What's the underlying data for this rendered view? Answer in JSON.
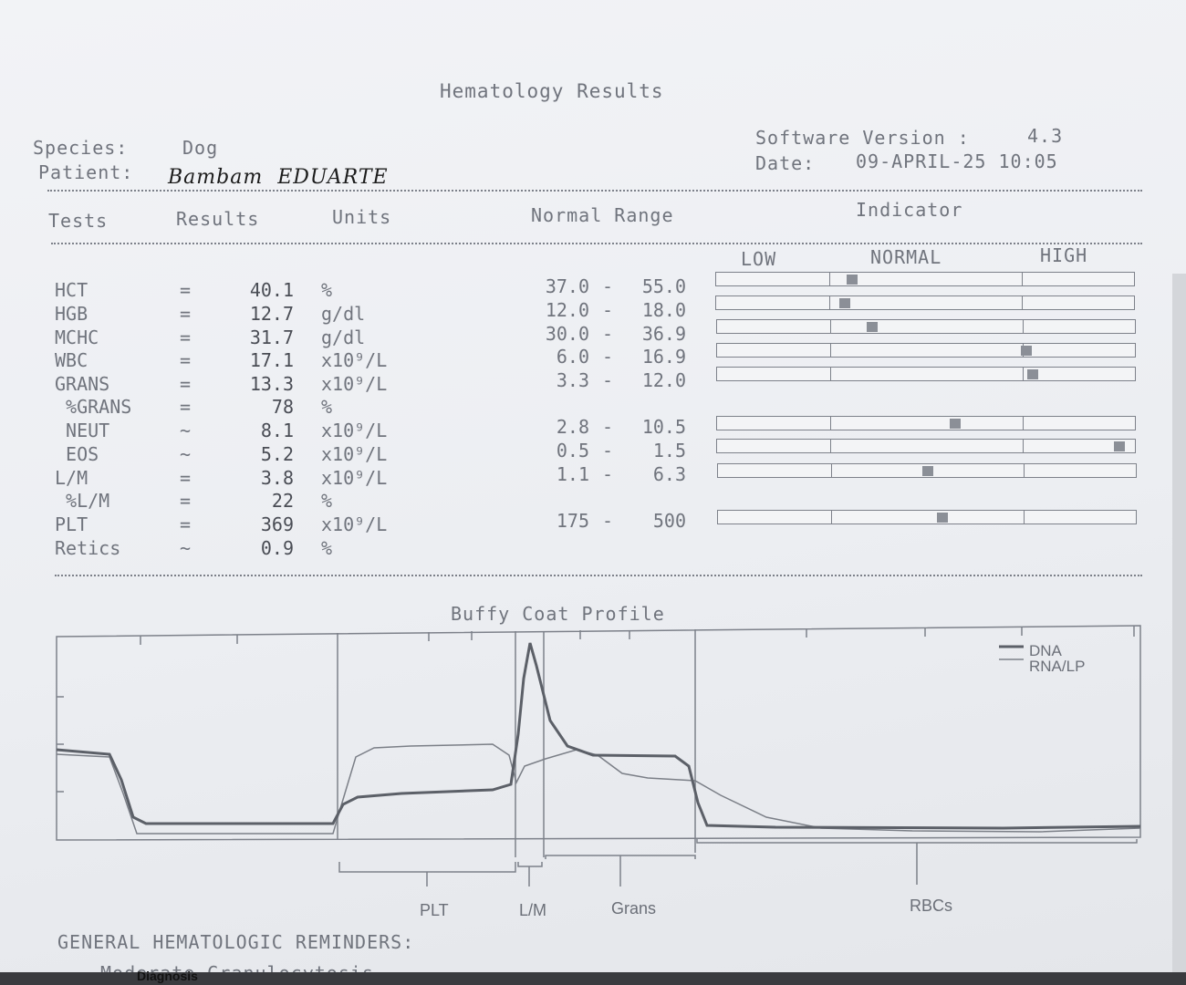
{
  "report": {
    "title": "Hematology Results",
    "species_label": "Species:",
    "species_value": "Dog",
    "patient_label": "Patient:",
    "patient_value": "Bambam  EDUARTE",
    "software_label": "Software Version :",
    "software_value": "4.3",
    "date_label": "Date:",
    "date_value": "09-APRIL-25 10:05"
  },
  "table": {
    "headers": {
      "tests": "Tests",
      "results": "Results",
      "units": "Units",
      "range": "Normal Range",
      "indicator": "Indicator"
    },
    "indicator_labels": {
      "low": "LOW",
      "normal": "NORMAL",
      "high": "HIGH"
    },
    "rows": [
      {
        "test": "HCT",
        "op": "=",
        "result": "40.1",
        "unit": "%",
        "low": "37.0",
        "high": "55.0",
        "indicator": 0.12
      },
      {
        "test": "HGB",
        "op": "=",
        "result": "12.7",
        "unit": "g/dl",
        "low": "12.0",
        "high": "18.0",
        "indicator": 0.08
      },
      {
        "test": "MCHC",
        "op": "=",
        "result": "31.7",
        "unit": "g/dl",
        "low": "30.0",
        "high": "36.9",
        "indicator": 0.22
      },
      {
        "test": "WBC",
        "op": "=",
        "result": "17.1",
        "unit": "x10⁹/L",
        "low": "6.0",
        "high": "16.9",
        "indicator": 1.02
      },
      {
        "test": "GRANS",
        "op": "=",
        "result": "13.3",
        "unit": "x10⁹/L",
        "low": "3.3",
        "high": "12.0",
        "indicator": 1.05
      },
      {
        "test": " %GRANS",
        "op": "=",
        "result": "78",
        "unit": "%",
        "low": "",
        "high": "",
        "indicator": null
      },
      {
        "test": " NEUT",
        "op": "~",
        "result": "8.1",
        "unit": "x10⁹/L",
        "low": "2.8",
        "high": "10.5",
        "indicator": 0.65
      },
      {
        "test": " EOS",
        "op": "~",
        "result": "5.2",
        "unit": "x10⁹/L",
        "low": "0.5",
        "high": "1.5",
        "indicator": 1.5
      },
      {
        "test": "L/M",
        "op": "=",
        "result": "3.8",
        "unit": "x10⁹/L",
        "low": "1.1",
        "high": "6.3",
        "indicator": 0.5
      },
      {
        "test": " %L/M",
        "op": "=",
        "result": "22",
        "unit": "%",
        "low": "",
        "high": "",
        "indicator": null
      },
      {
        "test": "PLT",
        "op": "=",
        "result": "369",
        "unit": "x10⁹/L",
        "low": "175",
        "high": "500",
        "indicator": 0.58
      },
      {
        "test": "Retics",
        "op": "~",
        "result": "0.9",
        "unit": "%",
        "low": "",
        "high": "",
        "indicator": null
      }
    ]
  },
  "buffy": {
    "title": "Buffy Coat Profile",
    "legend": [
      "DNA",
      "RNA/LP"
    ],
    "regions": [
      "PLT",
      "L/M",
      "Grans",
      "RBCs"
    ]
  },
  "footer": {
    "reminders_title": "GENERAL HEMATOLOGIC REMINDERS:",
    "reminder": "Moderate Granulocytosis",
    "cut_text": "Diagnosis"
  }
}
